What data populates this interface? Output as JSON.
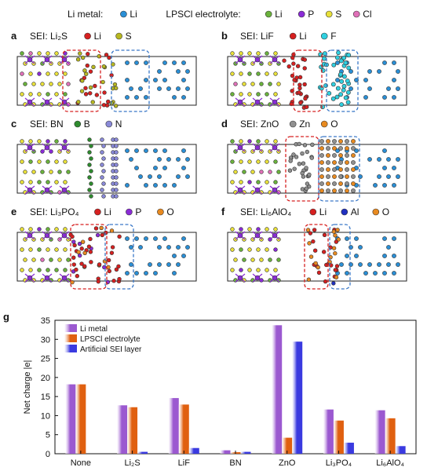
{
  "legend_top": {
    "groups": [
      {
        "label": "Li metal:",
        "items": [
          {
            "symbol": "Li",
            "color": "#2a8fd6"
          }
        ]
      },
      {
        "label": "LPSCl electrolyte:",
        "items": [
          {
            "symbol": "Li",
            "color": "#6ab23c"
          },
          {
            "symbol": "P",
            "color": "#8a2bd6"
          },
          {
            "symbol": "S",
            "color": "#e8e03a"
          },
          {
            "symbol": "Cl",
            "color": "#e070b8"
          }
        ]
      }
    ]
  },
  "panels": [
    {
      "letter": "a",
      "title": "SEI: Li₂S",
      "legend": [
        {
          "symbol": "Li",
          "color": "#d62020"
        },
        {
          "symbol": "S",
          "color": "#b8b820"
        }
      ]
    },
    {
      "letter": "b",
      "title": "SEI: LiF",
      "legend": [
        {
          "symbol": "Li",
          "color": "#d62020"
        },
        {
          "symbol": "F",
          "color": "#30d0e0"
        }
      ]
    },
    {
      "letter": "c",
      "title": "SEI: BN",
      "legend": [
        {
          "symbol": "B",
          "color": "#2e8b2e"
        },
        {
          "symbol": "N",
          "color": "#8a8ad8"
        }
      ]
    },
    {
      "letter": "d",
      "title": "SEI: ZnO",
      "legend": [
        {
          "symbol": "Zn",
          "color": "#909090"
        },
        {
          "symbol": "O",
          "color": "#e88a20"
        }
      ]
    },
    {
      "letter": "e",
      "title": "SEI: Li₃PO₄",
      "legend": [
        {
          "symbol": "Li",
          "color": "#d62020"
        },
        {
          "symbol": "P",
          "color": "#8a2bd6"
        },
        {
          "symbol": "O",
          "color": "#e88a20"
        }
      ]
    },
    {
      "letter": "f",
      "title": "SEI: Li₆AlO₄",
      "legend": [
        {
          "symbol": "Li",
          "color": "#d62020"
        },
        {
          "symbol": "Al",
          "color": "#2030c0"
        },
        {
          "symbol": "O",
          "color": "#e88a20"
        }
      ]
    }
  ],
  "chart_letter": "g",
  "chart_data": {
    "type": "bar",
    "title": "",
    "xlabel": "",
    "ylabel": "Net charge |e|",
    "ylim": [
      0,
      35
    ],
    "yticks": [
      0,
      5,
      10,
      15,
      20,
      25,
      30,
      35
    ],
    "categories": [
      "None",
      "Li₂S",
      "LiF",
      "BN",
      "ZnO",
      "Li₃PO₄",
      "Li₆AlO₄"
    ],
    "legend_position": "top-left",
    "series": [
      {
        "name": "Li metal",
        "color": "#9b59d0",
        "values": [
          18.2,
          12.7,
          14.6,
          0.9,
          33.7,
          11.6,
          11.4
        ]
      },
      {
        "name": "LPSCl electrolyte",
        "color": "#e06010",
        "values": [
          18.2,
          12.2,
          12.9,
          0.4,
          4.2,
          8.7,
          9.3
        ]
      },
      {
        "name": "Artificial SEI layer",
        "color": "#3a3ae0",
        "values": [
          0,
          0.5,
          1.5,
          0.5,
          29.4,
          2.9,
          2.0
        ]
      }
    ]
  }
}
